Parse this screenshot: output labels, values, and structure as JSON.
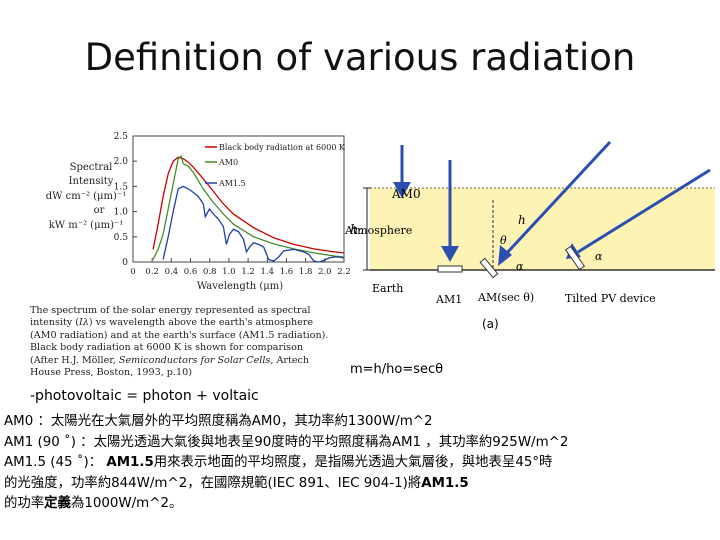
{
  "title": "Definition of various radiation",
  "chart_data": {
    "type": "line",
    "title": "",
    "ylabel_lines": [
      "Spectral",
      "Intensity",
      "dW cm⁻² (μm)⁻¹",
      "or",
      "kW m⁻² (μm)⁻¹"
    ],
    "xlabel": "Wavelength (μm)",
    "xlim": [
      0,
      2.1
    ],
    "ylim": [
      0,
      2.5
    ],
    "xticks": [
      "0",
      "0.2",
      "0.4",
      "0.6",
      "0.8",
      "1.0",
      "1.2",
      "1.4",
      "1.6",
      "1.8",
      "2.0",
      "2.2"
    ],
    "yticks": [
      "0",
      "0.5",
      "1.0",
      "1.5",
      "2.0",
      "2.5"
    ],
    "series": [
      {
        "name": "Black body radiation at 6000 K",
        "color": "#cc0000",
        "x": [
          0.2,
          0.25,
          0.3,
          0.35,
          0.4,
          0.45,
          0.5,
          0.55,
          0.6,
          0.7,
          0.8,
          0.9,
          1.0,
          1.2,
          1.4,
          1.6,
          1.8,
          2.0,
          2.1
        ],
        "y": [
          0.25,
          0.75,
          1.3,
          1.75,
          2.0,
          2.08,
          2.05,
          1.98,
          1.88,
          1.65,
          1.4,
          1.15,
          0.95,
          0.68,
          0.48,
          0.35,
          0.26,
          0.2,
          0.18
        ]
      },
      {
        "name": "AM0",
        "color": "#4a8a2a",
        "x": [
          0.2,
          0.25,
          0.3,
          0.35,
          0.4,
          0.45,
          0.48,
          0.5,
          0.55,
          0.6,
          0.7,
          0.8,
          0.9,
          1.0,
          1.2,
          1.4,
          1.6,
          1.8,
          2.0,
          2.1
        ],
        "y": [
          0.05,
          0.25,
          0.55,
          1.05,
          1.55,
          2.05,
          2.1,
          1.95,
          1.9,
          1.78,
          1.45,
          1.18,
          0.95,
          0.75,
          0.5,
          0.36,
          0.26,
          0.18,
          0.12,
          0.1
        ]
      },
      {
        "name": "AM1.5",
        "color": "#1f3fa8",
        "x": [
          0.3,
          0.35,
          0.4,
          0.45,
          0.5,
          0.55,
          0.6,
          0.65,
          0.7,
          0.72,
          0.76,
          0.8,
          0.85,
          0.9,
          0.93,
          0.96,
          1.0,
          1.05,
          1.1,
          1.13,
          1.16,
          1.2,
          1.25,
          1.3,
          1.35,
          1.4,
          1.45,
          1.5,
          1.6,
          1.7,
          1.75,
          1.8,
          1.85,
          1.9,
          1.95,
          2.0,
          2.05,
          2.1
        ],
        "y": [
          0.05,
          0.5,
          1.0,
          1.45,
          1.5,
          1.45,
          1.38,
          1.3,
          1.15,
          0.9,
          1.05,
          0.95,
          0.85,
          0.7,
          0.35,
          0.55,
          0.65,
          0.6,
          0.45,
          0.2,
          0.3,
          0.38,
          0.35,
          0.3,
          0.05,
          0.02,
          0.1,
          0.22,
          0.25,
          0.2,
          0.15,
          0.02,
          0.0,
          0.03,
          0.08,
          0.1,
          0.1,
          0.08
        ]
      }
    ],
    "legend": [
      "Black body radiation at 6000 K",
      "AM0",
      "AM1.5"
    ]
  },
  "caption": {
    "part1": "The spectrum of the solar energy represented as spectral intensity (",
    "symbol": "Iλ",
    "part2": ") vs wavelength above the earth's atmosphere (AM0 radiation) and at the earth's surface (AM1.5 radiation). Black body radiation at 6000 K is shown for comparison (After H.J. Möller, ",
    "book": "Semiconductors for Solar Cells",
    "part3": ", Artech House Press, Boston, 1993, p.10)"
  },
  "diagram": {
    "am0": "AM0",
    "h": "h",
    "h0": "h₀",
    "atmosphere": "Atmosphere",
    "theta": "θ",
    "alpha1": "α",
    "alpha2": "α",
    "earth": "Earth",
    "am1": "AM1",
    "amsec": "AM(sec θ)",
    "tilted": "Tilted PV device",
    "panel": "(a)",
    "sky_color": "#fdf3b5",
    "arrow_color": "#2b4fb0"
  },
  "formula": "m=h/ho=secθ",
  "pv_note": "-photovoltaic = photon + voltaic",
  "body": {
    "l1": "AM0 ：太陽光在大氣層外的平均照度稱為AM0，其功率約1300W/m^2",
    "l2": "AM1 (90 ˚) ：太陽光透過大氣後與地表呈90度時的平均照度稱為AM1 ，其功率約925W/m^2",
    "l3a": "AM1.5 (45 ˚)： ",
    "l3b": "AM1.5",
    "l3c": "用來表示地面的平均照度，是指陽光透過大氣層後，與地表呈45°時",
    "l4a": "的光強度，功率約844W/m^2，在國際規範(IEC 891、IEC 904-1)將",
    "l4b": "AM1.5",
    "l5a": "的功率",
    "l5b": "定義",
    "l5c": "為1000W/m^2。"
  }
}
